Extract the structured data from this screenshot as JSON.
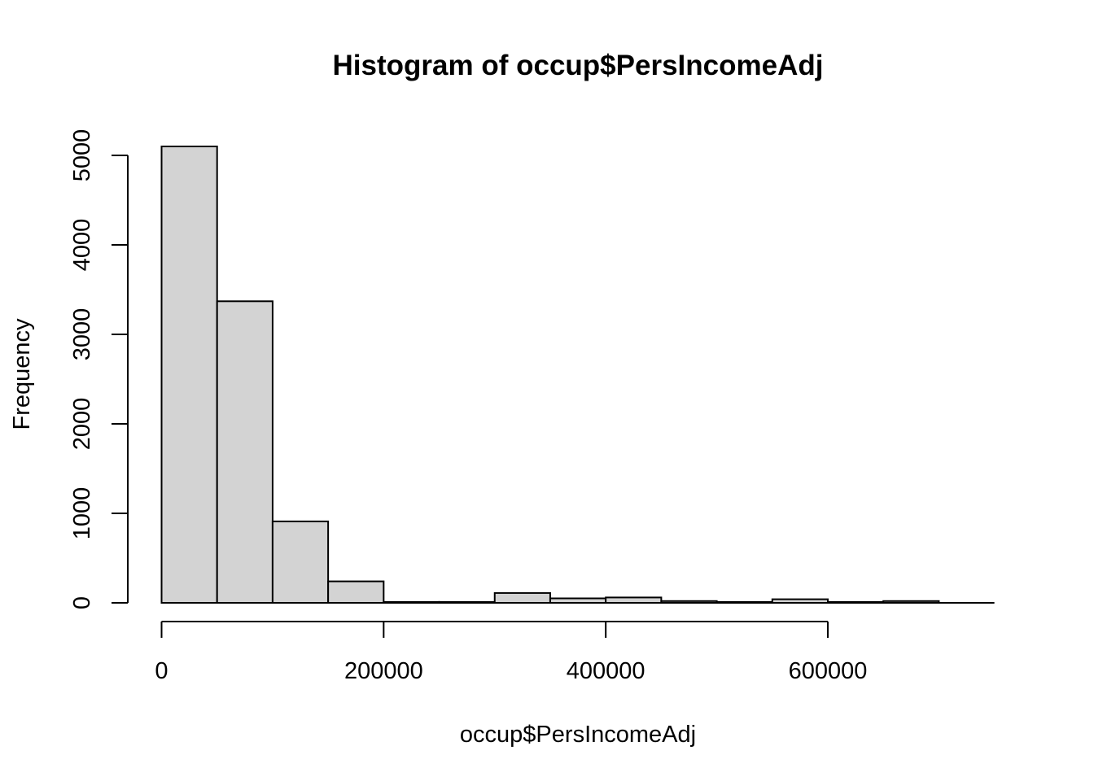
{
  "chart_data": {
    "type": "bar",
    "title": "Histogram of occup$PersIncomeAdj",
    "xlabel": "occup$PersIncomeAdj",
    "ylabel": "Frequency",
    "bin_edges": [
      0,
      50000,
      100000,
      150000,
      200000,
      250000,
      300000,
      350000,
      400000,
      450000,
      500000,
      550000,
      600000,
      650000,
      700000
    ],
    "values": [
      5100,
      3370,
      910,
      240,
      10,
      10,
      110,
      50,
      60,
      20,
      10,
      40,
      10,
      20
    ],
    "xlim": [
      0,
      750000
    ],
    "ylim": [
      0,
      5100
    ],
    "x_ticks": [
      0,
      200000,
      400000,
      600000
    ],
    "x_tick_labels": [
      "0",
      "200000",
      "400000",
      "600000"
    ],
    "y_ticks": [
      0,
      1000,
      2000,
      3000,
      4000,
      5000
    ],
    "y_tick_labels": [
      "0",
      "1000",
      "2000",
      "3000",
      "4000",
      "5000"
    ],
    "grid": false,
    "colors": {
      "bar_fill": "#d3d3d3",
      "bar_stroke": "#000000"
    }
  }
}
